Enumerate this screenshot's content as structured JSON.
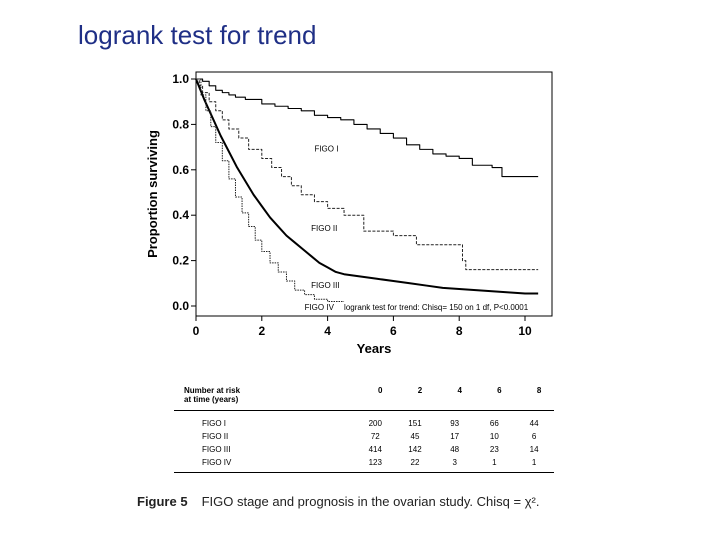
{
  "slide": {
    "title": "logrank test for trend"
  },
  "chart_data": {
    "type": "line",
    "xlabel": "Years",
    "ylabel": "Proportion surviving",
    "xlim": [
      0,
      10.6
    ],
    "ylim": [
      0,
      1.04
    ],
    "xticks": [
      "0",
      "2",
      "4",
      "6",
      "8",
      "10"
    ],
    "yticks": [
      "0.0",
      "0.2",
      "0.4",
      "0.6",
      "0.8",
      "1.0"
    ],
    "series": [
      {
        "name": "FIGO I",
        "step": true,
        "stroke": "#000000",
        "width": 1.1,
        "dash": "",
        "x": [
          0,
          0.2,
          0.4,
          0.6,
          0.8,
          1.0,
          1.2,
          1.5,
          2.0,
          2.4,
          2.8,
          3.2,
          3.6,
          4.0,
          4.4,
          4.8,
          5.2,
          5.6,
          6.0,
          6.4,
          6.8,
          7.2,
          7.6,
          8.0,
          8.4,
          9.0,
          9.3,
          10.4
        ],
        "y": [
          1.0,
          0.99,
          0.97,
          0.95,
          0.94,
          0.93,
          0.92,
          0.91,
          0.89,
          0.88,
          0.87,
          0.86,
          0.84,
          0.83,
          0.82,
          0.8,
          0.78,
          0.76,
          0.74,
          0.71,
          0.69,
          0.67,
          0.66,
          0.65,
          0.62,
          0.61,
          0.57,
          0.57
        ]
      },
      {
        "name": "FIGO II",
        "step": true,
        "stroke": "#222222",
        "width": 1.0,
        "dash": "3 1.5",
        "x": [
          0,
          0.1,
          0.2,
          0.4,
          0.6,
          0.8,
          1.0,
          1.3,
          1.6,
          2.0,
          2.3,
          2.6,
          2.9,
          3.2,
          3.6,
          4.0,
          4.5,
          5.1,
          6.0,
          6.7,
          8.1,
          8.2,
          10.4
        ],
        "y": [
          1.0,
          0.97,
          0.94,
          0.9,
          0.86,
          0.82,
          0.78,
          0.74,
          0.69,
          0.65,
          0.61,
          0.57,
          0.53,
          0.49,
          0.46,
          0.43,
          0.4,
          0.33,
          0.31,
          0.27,
          0.2,
          0.16,
          0.16
        ]
      },
      {
        "name": "FIGO III",
        "step": false,
        "stroke": "#000000",
        "width": 2.0,
        "dash": "",
        "x": [
          0,
          0.25,
          0.5,
          0.75,
          1.0,
          1.25,
          1.5,
          1.75,
          2.0,
          2.25,
          2.5,
          2.75,
          3.0,
          3.25,
          3.5,
          3.75,
          4.0,
          4.25,
          4.5,
          5.0,
          5.5,
          6.0,
          6.5,
          7.0,
          7.5,
          8.0,
          8.5,
          9.0,
          9.5,
          10.0,
          10.4
        ],
        "y": [
          1.0,
          0.91,
          0.83,
          0.75,
          0.68,
          0.61,
          0.55,
          0.49,
          0.44,
          0.39,
          0.35,
          0.31,
          0.28,
          0.25,
          0.22,
          0.19,
          0.17,
          0.15,
          0.14,
          0.13,
          0.12,
          0.11,
          0.1,
          0.09,
          0.08,
          0.075,
          0.07,
          0.065,
          0.06,
          0.055,
          0.055
        ]
      },
      {
        "name": "FIGO IV",
        "step": true,
        "stroke": "#222222",
        "width": 1.0,
        "dash": "1.5 1",
        "x": [
          0,
          0.15,
          0.3,
          0.45,
          0.6,
          0.8,
          1.0,
          1.2,
          1.4,
          1.6,
          1.8,
          2.0,
          2.25,
          2.5,
          2.75,
          3.0,
          3.3,
          3.6,
          4.0,
          4.5
        ],
        "y": [
          1.0,
          0.93,
          0.86,
          0.79,
          0.72,
          0.64,
          0.56,
          0.48,
          0.41,
          0.35,
          0.29,
          0.24,
          0.19,
          0.15,
          0.11,
          0.07,
          0.05,
          0.03,
          0.02,
          0.02
        ]
      }
    ],
    "annotations": [
      {
        "text": "FIGO I",
        "x": 3.6,
        "y": 0.68
      },
      {
        "text": "FIGO II",
        "x": 3.5,
        "y": 0.33
      },
      {
        "text": "FIGO III",
        "x": 3.5,
        "y": 0.08
      },
      {
        "text": "FIGO IV",
        "x": 3.3,
        "y": -0.018
      },
      {
        "text": "logrank test for trend: Chisq= 150 on 1 df, P<0.0001",
        "x": 4.5,
        "y": -0.018
      }
    ]
  },
  "risk_table": {
    "header_line1": "Number at risk",
    "header_line2": "at time (years)",
    "times": [
      "0",
      "2",
      "4",
      "6",
      "8"
    ],
    "rows": [
      {
        "label": "FIGO I",
        "values": [
          "200",
          "151",
          "93",
          "66",
          "44"
        ]
      },
      {
        "label": "FIGO II",
        "values": [
          "72",
          "45",
          "17",
          "10",
          "6"
        ]
      },
      {
        "label": "FIGO III",
        "values": [
          "414",
          "142",
          "48",
          "23",
          "14"
        ]
      },
      {
        "label": "FIGO IV",
        "values": [
          "123",
          "22",
          "3",
          "1",
          "1"
        ]
      }
    ]
  },
  "caption": {
    "label": "Figure 5",
    "text": "FIGO stage and prognosis in the ovarian study. Chisq = χ²."
  }
}
